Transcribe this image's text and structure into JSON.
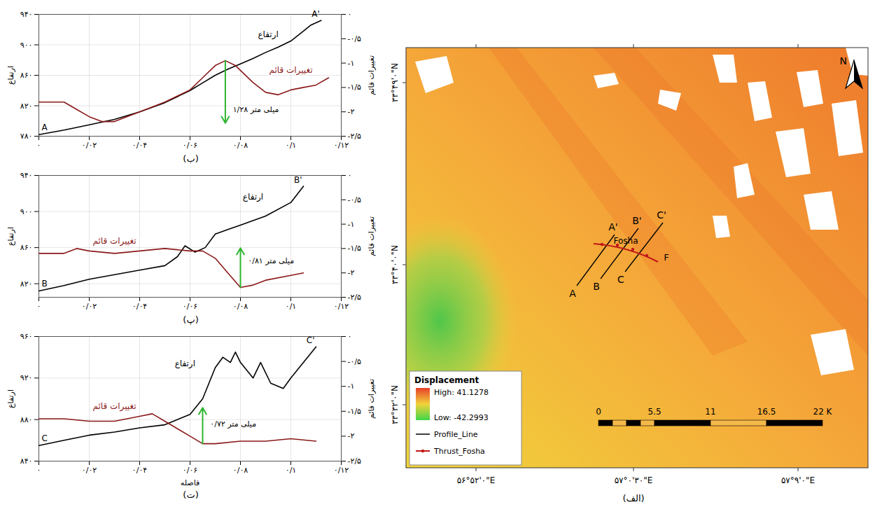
{
  "chart_data": [
    {
      "type": "line",
      "caption": "(ب)",
      "grid": true,
      "xlim": [
        0,
        0.12
      ],
      "xticks": [
        {
          "value": 0,
          "label": "۰"
        },
        {
          "value": 0.02,
          "label": "۰/۰۲"
        },
        {
          "value": 0.04,
          "label": "۰/۰۴"
        },
        {
          "value": 0.06,
          "label": "۰/۰۶"
        },
        {
          "value": 0.08,
          "label": "۰/۰۸"
        },
        {
          "value": 0.1,
          "label": "۰/۱"
        },
        {
          "value": 0.12,
          "label": "۰/۱۲"
        }
      ],
      "ylabel": "ارتفاع",
      "ylim": [
        780,
        940
      ],
      "yticks": [
        {
          "value": 780,
          "label": "۷۸۰"
        },
        {
          "value": 820,
          "label": "۸۲۰"
        },
        {
          "value": 860,
          "label": "۸۶۰"
        },
        {
          "value": 900,
          "label": "۹۰۰"
        },
        {
          "value": 940,
          "label": "۹۴۰"
        }
      ],
      "y2label": "تغییرات قائم",
      "y2lim": [
        -2.5,
        0
      ],
      "y2ticks": [
        {
          "value": 0,
          "label": "۰"
        },
        {
          "value": -0.5,
          "label": "-۰/۵"
        },
        {
          "value": -1,
          "label": "-۱"
        },
        {
          "value": -1.5,
          "label": "-۱/۵"
        },
        {
          "value": -2,
          "label": "-۲"
        },
        {
          "value": -2.5,
          "label": "-۲/۵"
        }
      ],
      "series": [
        {
          "name": "ارتفاع",
          "color": "#000000",
          "start_label": "A",
          "end_label": "A'",
          "label_x": 0.091,
          "label_y": 914,
          "x": [
            0,
            0.01,
            0.02,
            0.03,
            0.04,
            0.05,
            0.06,
            0.065,
            0.07,
            0.075,
            0.08,
            0.085,
            0.09,
            0.095,
            0.1,
            0.105,
            0.108,
            0.112
          ],
          "values": [
            782,
            788,
            795,
            802,
            812,
            824,
            840,
            850,
            860,
            868,
            875,
            882,
            890,
            897,
            905,
            918,
            926,
            932
          ]
        },
        {
          "name": "تغییرات قائم",
          "color": "#8b1a1a",
          "axis": "y2",
          "label_x": 0.1,
          "label_y": -1.15,
          "x": [
            0,
            0.01,
            0.015,
            0.02,
            0.025,
            0.03,
            0.04,
            0.05,
            0.06,
            0.065,
            0.07,
            0.074,
            0.078,
            0.085,
            0.09,
            0.095,
            0.1,
            0.105,
            0.11,
            0.115
          ],
          "values": [
            -1.8,
            -1.8,
            -1.95,
            -2.1,
            -2.2,
            -2.2,
            -2.0,
            -1.8,
            -1.55,
            -1.3,
            -1.05,
            -0.95,
            -1.05,
            -1.4,
            -1.6,
            -1.65,
            -1.55,
            -1.5,
            -1.45,
            -1.3
          ]
        }
      ],
      "annotations": [
        {
          "label": "۱/۲۸ میلی متر",
          "color": "#2db52d",
          "x": 0.074,
          "y1": -0.95,
          "y2": -2.23,
          "label_x": 0.077,
          "label_y": -1.95
        }
      ]
    },
    {
      "type": "line",
      "caption": "(پ)",
      "grid": true,
      "xlim": [
        0,
        0.12
      ],
      "xticks": [
        {
          "value": 0,
          "label": "۰"
        },
        {
          "value": 0.02,
          "label": "۰/۰۲"
        },
        {
          "value": 0.04,
          "label": "۰/۰۴"
        },
        {
          "value": 0.06,
          "label": "۰/۰۶"
        },
        {
          "value": 0.08,
          "label": "۰/۰۸"
        },
        {
          "value": 0.1,
          "label": "۰/۱"
        },
        {
          "value": 0.12,
          "label": "۰/۱۲"
        }
      ],
      "ylabel": "ارتفاع",
      "ylim": [
        805,
        940
      ],
      "yticks": [
        {
          "value": 820,
          "label": "۸۲۰"
        },
        {
          "value": 860,
          "label": "۸۶۰"
        },
        {
          "value": 900,
          "label": "۹۰۰"
        },
        {
          "value": 940,
          "label": "۹۴۰"
        }
      ],
      "y2label": "تغییرات قائم",
      "y2lim": [
        -2.5,
        0
      ],
      "y2ticks": [
        {
          "value": 0,
          "label": "۰"
        },
        {
          "value": -0.5,
          "label": "-۰/۵"
        },
        {
          "value": -1,
          "label": "-۱"
        },
        {
          "value": -1.5,
          "label": "-۱/۵"
        },
        {
          "value": -2,
          "label": "-۲"
        },
        {
          "value": -2.5,
          "label": "-۲/۵"
        }
      ],
      "series": [
        {
          "name": "ارتفاع",
          "color": "#000000",
          "start_label": "B",
          "end_label": "B'",
          "label_x": 0.085,
          "label_y": 916,
          "x": [
            0,
            0.01,
            0.02,
            0.03,
            0.04,
            0.05,
            0.055,
            0.058,
            0.062,
            0.066,
            0.07,
            0.075,
            0.08,
            0.09,
            0.1,
            0.105
          ],
          "values": [
            812,
            818,
            825,
            830,
            835,
            840,
            850,
            862,
            855,
            860,
            875,
            880,
            885,
            895,
            910,
            928
          ]
        },
        {
          "name": "تغییرات قائم",
          "color": "#8b1a1a",
          "axis": "y2",
          "label_x": 0.03,
          "label_y": -1.35,
          "x": [
            0,
            0.01,
            0.015,
            0.02,
            0.03,
            0.04,
            0.05,
            0.06,
            0.065,
            0.07,
            0.075,
            0.08,
            0.085,
            0.09,
            0.1,
            0.105
          ],
          "values": [
            -1.6,
            -1.6,
            -1.5,
            -1.55,
            -1.6,
            -1.55,
            -1.5,
            -1.55,
            -1.55,
            -1.7,
            -2.0,
            -2.3,
            -2.25,
            -2.15,
            -2.05,
            -2.0
          ]
        }
      ],
      "annotations": [
        {
          "label": "۰/۸۱ میلی متر",
          "color": "#2db52d",
          "x": 0.08,
          "y1": -2.3,
          "y2": -1.49,
          "label_x": 0.083,
          "label_y": -1.75
        }
      ]
    },
    {
      "type": "line",
      "caption": "(ت)",
      "grid": true,
      "xlabel": "فاصله",
      "xlim": [
        0,
        0.12
      ],
      "xticks": [
        {
          "value": 0,
          "label": "۰"
        },
        {
          "value": 0.02,
          "label": "۰/۰۲"
        },
        {
          "value": 0.04,
          "label": "۰/۰۴"
        },
        {
          "value": 0.06,
          "label": "۰/۰۶"
        },
        {
          "value": 0.08,
          "label": "۰/۰۸"
        },
        {
          "value": 0.1,
          "label": "۰/۱"
        },
        {
          "value": 0.12,
          "label": "۰/۱۲"
        }
      ],
      "ylabel": "ارتفاع",
      "ylim": [
        840,
        960
      ],
      "yticks": [
        {
          "value": 840,
          "label": "۸۴۰"
        },
        {
          "value": 880,
          "label": "۸۸۰"
        },
        {
          "value": 920,
          "label": "۹۲۰"
        },
        {
          "value": 960,
          "label": "۹۶۰"
        }
      ],
      "y2label": "تغییرات قائم",
      "y2lim": [
        -2.5,
        0
      ],
      "y2ticks": [
        {
          "value": 0,
          "label": "۰"
        },
        {
          "value": -0.5,
          "label": "-۰/۵"
        },
        {
          "value": -1,
          "label": "-۱"
        },
        {
          "value": -1.5,
          "label": "-۱/۵"
        },
        {
          "value": -2,
          "label": "-۲"
        },
        {
          "value": -2.5,
          "label": "-۲/۵"
        }
      ],
      "series": [
        {
          "name": "ارتفاع",
          "color": "#000000",
          "start_label": "C",
          "end_label": "C'",
          "label_x": 0.058,
          "label_y": 934,
          "x": [
            0,
            0.01,
            0.02,
            0.03,
            0.04,
            0.05,
            0.06,
            0.065,
            0.07,
            0.073,
            0.076,
            0.078,
            0.08,
            0.085,
            0.088,
            0.092,
            0.097,
            0.1,
            0.105,
            0.11
          ],
          "values": [
            855,
            860,
            865,
            868,
            872,
            875,
            885,
            900,
            930,
            940,
            935,
            945,
            935,
            920,
            935,
            915,
            910,
            920,
            935,
            950
          ]
        },
        {
          "name": "تغییرات قائم",
          "color": "#8b1a1a",
          "axis": "y2",
          "label_x": 0.03,
          "label_y": -1.4,
          "x": [
            0,
            0.01,
            0.02,
            0.03,
            0.04,
            0.045,
            0.05,
            0.055,
            0.06,
            0.065,
            0.07,
            0.08,
            0.09,
            0.1,
            0.11
          ],
          "values": [
            -1.65,
            -1.65,
            -1.7,
            -1.7,
            -1.6,
            -1.55,
            -1.7,
            -1.85,
            -2.0,
            -2.15,
            -2.15,
            -2.1,
            -2.1,
            -2.05,
            -2.1
          ]
        }
      ],
      "annotations": [
        {
          "label": "۰/۷۲ میلی متر",
          "color": "#2db52d",
          "x": 0.065,
          "y1": -2.15,
          "y2": -1.43,
          "label_x": 0.068,
          "label_y": -1.75
        }
      ]
    }
  ],
  "map": {
    "caption": "(الف)",
    "north": "N",
    "lat_labels": [
      "۳۳°۴۹'۰\"N",
      "۳۳°۴۰'۰\"N",
      "۳۳°۳۲'۰\"N"
    ],
    "lon_labels": [
      "۵۶°۵۲'۰\"E",
      "۵۷°۰'۳۰\"E",
      "۵۷°۹'۰\"E"
    ],
    "legend": {
      "title": "Displacement",
      "high": "High: 41.1278",
      "low": "Low: -42.2993",
      "profile": "Profile_Line",
      "fault": "Thrust_Fosha"
    },
    "scale_bar": [
      "0",
      "5.5",
      "11",
      "16.5",
      "22 K"
    ],
    "profiles": [
      {
        "start": "A",
        "end": "A'"
      },
      {
        "start": "B",
        "end": "B'"
      },
      {
        "start": "C",
        "end": "C'"
      }
    ],
    "fault": {
      "name": "Fosha",
      "label": "F"
    }
  }
}
